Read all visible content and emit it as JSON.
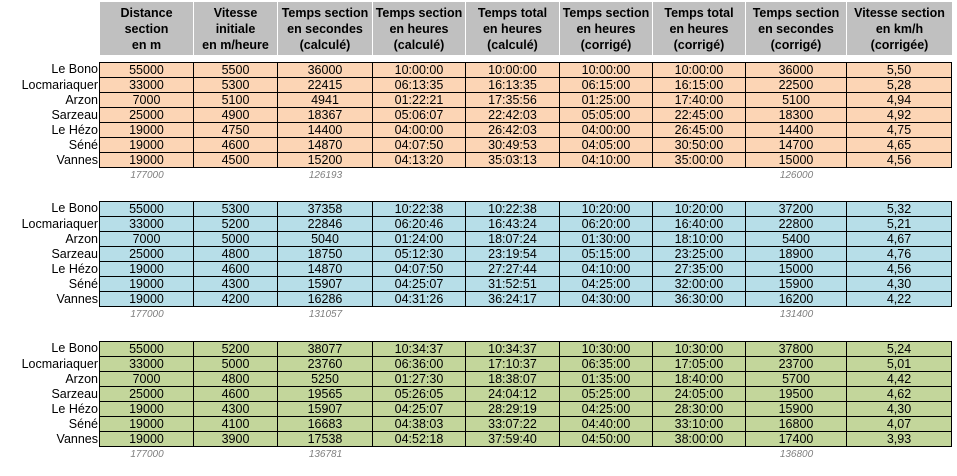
{
  "colors": {
    "header": "#c0c0c0",
    "block_1": "#fcd5b5",
    "block_2": "#b7dee8",
    "block_3": "#c3d69b"
  },
  "headers": [
    "Distance\nsection\nen m",
    "Vitesse\ninitiale\nen m/heure",
    "Temps section\nen secondes\n(calculé)",
    "Temps section\nen heures\n(calculé)",
    "Temps total\nen heures\n(calculé)",
    "Temps section\nen heures\n(corrigé)",
    "Temps total\nen heures\n(corrigé)",
    "Temps section\nen secondes\n(corrigé)",
    "Vitesse section\nen km/h\n(corrigée)"
  ],
  "blocks": [
    {
      "rows": [
        {
          "label": "Le Bono",
          "cells": [
            "55000",
            "5500",
            "36000",
            "10:00:00",
            "10:00:00",
            "10:00:00",
            "10:00:00",
            "36000",
            "5,50"
          ]
        },
        {
          "label": "Locmariaquer",
          "cells": [
            "33000",
            "5300",
            "22415",
            "06:13:35",
            "16:13:35",
            "06:15:00",
            "16:15:00",
            "22500",
            "5,28"
          ]
        },
        {
          "label": "Arzon",
          "cells": [
            "7000",
            "5100",
            "4941",
            "01:22:21",
            "17:35:56",
            "01:25:00",
            "17:40:00",
            "5100",
            "4,94"
          ]
        },
        {
          "label": "Sarzeau",
          "cells": [
            "25000",
            "4900",
            "18367",
            "05:06:07",
            "22:42:03",
            "05:05:00",
            "22:45:00",
            "18300",
            "4,92"
          ]
        },
        {
          "label": "Le Hézo",
          "cells": [
            "19000",
            "4750",
            "14400",
            "04:00:00",
            "26:42:03",
            "04:00:00",
            "26:45:00",
            "14400",
            "4,75"
          ]
        },
        {
          "label": "Séné",
          "cells": [
            "19000",
            "4600",
            "14870",
            "04:07:50",
            "30:49:53",
            "04:05:00",
            "30:50:00",
            "14700",
            "4,65"
          ]
        },
        {
          "label": "Vannes",
          "cells": [
            "19000",
            "4500",
            "15200",
            "04:13:20",
            "35:03:13",
            "04:10:00",
            "35:00:00",
            "15000",
            "4,56"
          ]
        }
      ],
      "totals": [
        "177000",
        "",
        "126193",
        "",
        "",
        "",
        "",
        "126000",
        ""
      ]
    },
    {
      "rows": [
        {
          "label": "Le Bono",
          "cells": [
            "55000",
            "5300",
            "37358",
            "10:22:38",
            "10:22:38",
            "10:20:00",
            "10:20:00",
            "37200",
            "5,32"
          ]
        },
        {
          "label": "Locmariaquer",
          "cells": [
            "33000",
            "5200",
            "22846",
            "06:20:46",
            "16:43:24",
            "06:20:00",
            "16:40:00",
            "22800",
            "5,21"
          ]
        },
        {
          "label": "Arzon",
          "cells": [
            "7000",
            "5000",
            "5040",
            "01:24:00",
            "18:07:24",
            "01:30:00",
            "18:10:00",
            "5400",
            "4,67"
          ]
        },
        {
          "label": "Sarzeau",
          "cells": [
            "25000",
            "4800",
            "18750",
            "05:12:30",
            "23:19:54",
            "05:15:00",
            "23:25:00",
            "18900",
            "4,76"
          ]
        },
        {
          "label": "Le Hézo",
          "cells": [
            "19000",
            "4600",
            "14870",
            "04:07:50",
            "27:27:44",
            "04:10:00",
            "27:35:00",
            "15000",
            "4,56"
          ]
        },
        {
          "label": "Séné",
          "cells": [
            "19000",
            "4300",
            "15907",
            "04:25:07",
            "31:52:51",
            "04:25:00",
            "32:00:00",
            "15900",
            "4,30"
          ]
        },
        {
          "label": "Vannes",
          "cells": [
            "19000",
            "4200",
            "16286",
            "04:31:26",
            "36:24:17",
            "04:30:00",
            "36:30:00",
            "16200",
            "4,22"
          ]
        }
      ],
      "totals": [
        "177000",
        "",
        "131057",
        "",
        "",
        "",
        "",
        "131400",
        ""
      ]
    },
    {
      "rows": [
        {
          "label": "Le Bono",
          "cells": [
            "55000",
            "5200",
            "38077",
            "10:34:37",
            "10:34:37",
            "10:30:00",
            "10:30:00",
            "37800",
            "5,24"
          ]
        },
        {
          "label": "Locmariaquer",
          "cells": [
            "33000",
            "5000",
            "23760",
            "06:36:00",
            "17:10:37",
            "06:35:00",
            "17:05:00",
            "23700",
            "5,01"
          ]
        },
        {
          "label": "Arzon",
          "cells": [
            "7000",
            "4800",
            "5250",
            "01:27:30",
            "18:38:07",
            "01:35:00",
            "18:40:00",
            "5700",
            "4,42"
          ]
        },
        {
          "label": "Sarzeau",
          "cells": [
            "25000",
            "4600",
            "19565",
            "05:26:05",
            "24:04:12",
            "05:25:00",
            "24:05:00",
            "19500",
            "4,62"
          ]
        },
        {
          "label": "Le Hézo",
          "cells": [
            "19000",
            "4300",
            "15907",
            "04:25:07",
            "28:29:19",
            "04:25:00",
            "28:30:00",
            "15900",
            "4,30"
          ]
        },
        {
          "label": "Séné",
          "cells": [
            "19000",
            "4100",
            "16683",
            "04:38:03",
            "33:07:22",
            "04:40:00",
            "33:10:00",
            "16800",
            "4,07"
          ]
        },
        {
          "label": "Vannes",
          "cells": [
            "19000",
            "3900",
            "17538",
            "04:52:18",
            "37:59:40",
            "04:50:00",
            "38:00:00",
            "17400",
            "3,93"
          ]
        }
      ],
      "totals": [
        "177000",
        "",
        "136781",
        "",
        "",
        "",
        "",
        "136800",
        ""
      ]
    }
  ]
}
